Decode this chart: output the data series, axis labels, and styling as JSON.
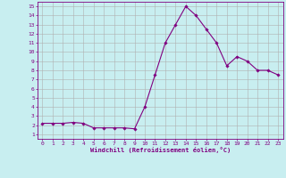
{
  "x": [
    0,
    1,
    2,
    3,
    4,
    5,
    6,
    7,
    8,
    9,
    10,
    11,
    12,
    13,
    14,
    15,
    16,
    17,
    18,
    19,
    20,
    21,
    22,
    23
  ],
  "y": [
    2.2,
    2.2,
    2.2,
    2.3,
    2.2,
    1.7,
    1.7,
    1.7,
    1.7,
    1.6,
    4.0,
    7.5,
    11.0,
    13.0,
    15.0,
    14.0,
    12.5,
    11.0,
    8.5,
    9.5,
    9.0,
    8.0,
    8.0,
    7.5
  ],
  "line_color": "#800080",
  "marker": "D",
  "marker_size": 1.8,
  "line_width": 0.8,
  "bg_color": "#c8eef0",
  "grid_color": "#b0b0b0",
  "xlabel": "Windchill (Refroidissement éolien,°C)",
  "xlabel_color": "#800080",
  "tick_color": "#800080",
  "ylabel_ticks": [
    1,
    2,
    3,
    4,
    5,
    6,
    7,
    8,
    9,
    10,
    11,
    12,
    13,
    14,
    15
  ],
  "xlim": [
    -0.5,
    23.5
  ],
  "ylim": [
    0.5,
    15.5
  ],
  "tick_fontsize": 4.5,
  "xlabel_fontsize": 5.0
}
